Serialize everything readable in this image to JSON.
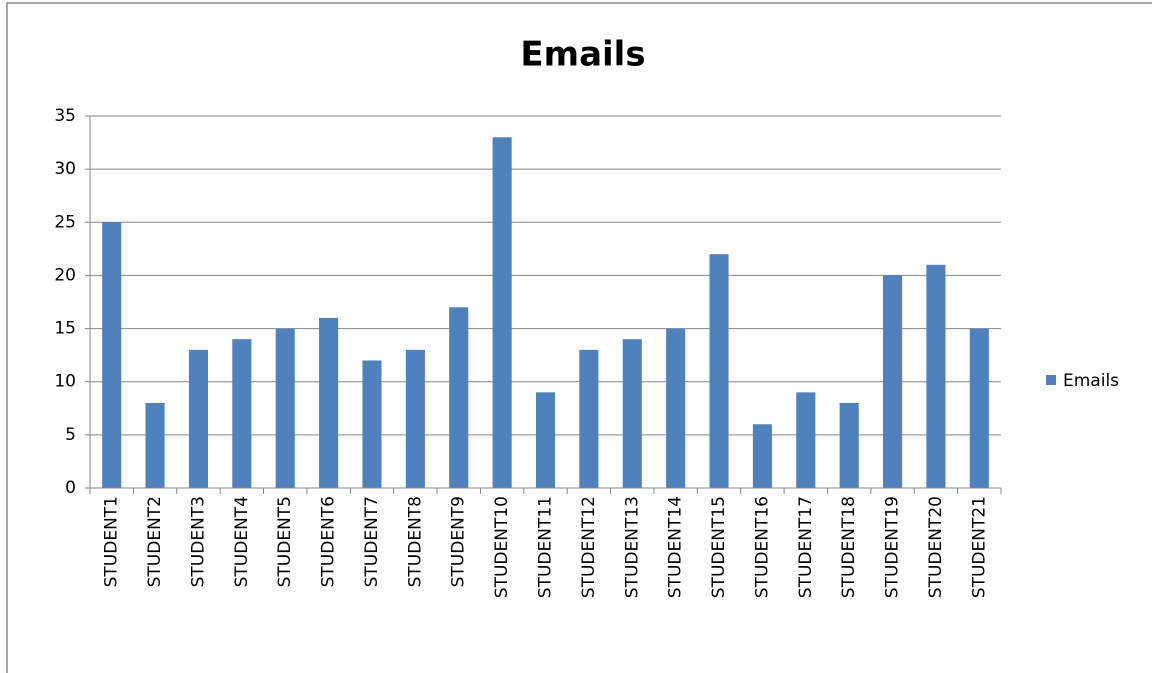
{
  "chart_data": {
    "type": "bar",
    "title": "Emails",
    "categories": [
      "STUDENT1",
      "STUDENT2",
      "STUDENT3",
      "STUDENT4",
      "STUDENT5",
      "STUDENT6",
      "STUDENT7",
      "STUDENT8",
      "STUDENT9",
      "STUDENT10",
      "STUDENT11",
      "STUDENT12",
      "STUDENT13",
      "STUDENT14",
      "STUDENT15",
      "STUDENT16",
      "STUDENT17",
      "STUDENT18",
      "STUDENT19",
      "STUDENT20",
      "STUDENT21"
    ],
    "series": [
      {
        "name": "Emails",
        "color": "#4f81bd",
        "values": [
          25,
          8,
          13,
          14,
          15,
          16,
          12,
          13,
          17,
          33,
          9,
          13,
          14,
          15,
          22,
          6,
          9,
          8,
          20,
          21,
          15
        ]
      }
    ],
    "ylim": [
      0,
      35
    ],
    "yticks": [
      0,
      5,
      10,
      15,
      20,
      25,
      30,
      35
    ],
    "grid": true,
    "legend": "right"
  }
}
